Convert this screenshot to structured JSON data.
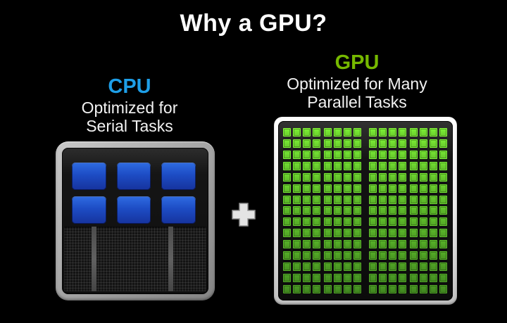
{
  "slide": {
    "title": "Why a GPU?",
    "title_color": "#FFFFFF",
    "background_color": "#000000"
  },
  "cpu": {
    "label": "CPU",
    "label_color": "#1E9FE8",
    "subtitle_lines": [
      "Optimized for",
      "Serial Tasks"
    ],
    "chip": {
      "core_count": 6,
      "core_columns": 3,
      "core_rows": 2,
      "core_color_top": "#2F6CE2",
      "core_color_bottom": "#16339D",
      "memory_divider_count": 2
    }
  },
  "gpu": {
    "label": "GPU",
    "label_color": "#76B900",
    "subtitle_lines": [
      "Optimized for Many",
      "Parallel Tasks"
    ],
    "chip": {
      "rows": 15,
      "columns": 16,
      "column_groups": [
        4,
        4,
        4,
        4
      ],
      "core_color_top": "#70D930",
      "core_color_bottom": "#428A20",
      "gap_small": 3,
      "gap_group": 5,
      "gap_middle": 11
    }
  },
  "plus": {
    "symbol": "+"
  }
}
